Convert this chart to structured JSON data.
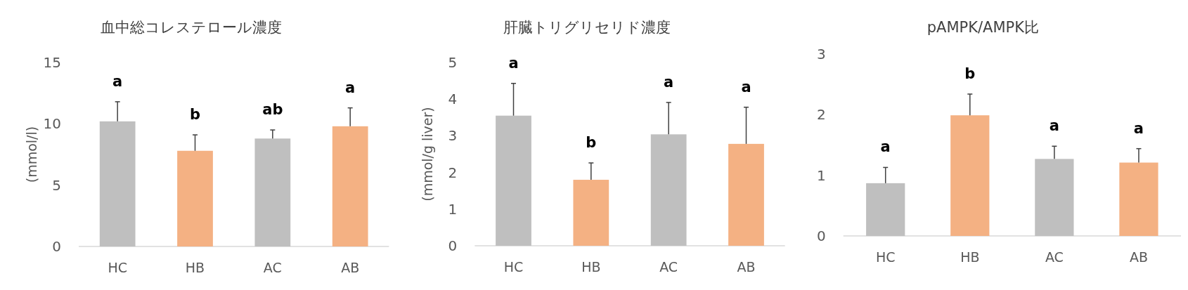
{
  "chart_data": [
    {
      "type": "bar",
      "title": "血中総コレステロール濃度",
      "ylabel": "(mmol/l)",
      "categories": [
        "HC",
        "HB",
        "AC",
        "AB"
      ],
      "series": [
        {
          "colors": [
            "#bfbfbf",
            "#f4b183",
            "#bfbfbf",
            "#f4b183"
          ],
          "values": [
            10.2,
            7.8,
            8.8,
            9.8
          ],
          "errors": [
            [
              10.2,
              11.8
            ],
            [
              7.8,
              9.1
            ],
            [
              8.8,
              9.5
            ],
            [
              9.8,
              11.3
            ]
          ]
        }
      ],
      "ylim": [
        0,
        15
      ],
      "yticks": [
        0,
        5,
        10,
        15
      ],
      "annotations": [
        "a",
        "b",
        "ab",
        "a"
      ]
    },
    {
      "type": "bar",
      "title": "肝臓トリグリセリド濃度",
      "ylabel": "(mmol/g liver)",
      "categories": [
        "HC",
        "HB",
        "AC",
        "AB"
      ],
      "series": [
        {
          "colors": [
            "#bfbfbf",
            "#f4b183",
            "#bfbfbf",
            "#f4b183"
          ],
          "values": [
            3.55,
            1.8,
            3.04,
            2.78
          ],
          "errors": [
            [
              3.55,
              4.43
            ],
            [
              1.8,
              2.26
            ],
            [
              3.04,
              3.91
            ],
            [
              2.78,
              3.78
            ]
          ]
        }
      ],
      "ylim": [
        0,
        5
      ],
      "yticks": [
        0,
        1,
        2,
        3,
        4,
        5
      ],
      "annotations": [
        "a",
        "b",
        "a",
        "a"
      ]
    },
    {
      "type": "bar",
      "title": "pAMPK/AMPK比",
      "categories": [
        "HC",
        "HB",
        "AC",
        "AB"
      ],
      "series": [
        {
          "colors": [
            "#bfbfbf",
            "#f4b183",
            "#bfbfbf",
            "#f4b183"
          ],
          "values": [
            0.87,
            1.99,
            1.27,
            1.21
          ],
          "errors": [
            [
              0.87,
              1.13
            ],
            [
              1.99,
              2.34
            ],
            [
              1.27,
              1.48
            ],
            [
              1.21,
              1.44
            ]
          ]
        }
      ],
      "ylim": [
        0,
        3
      ],
      "yticks": [
        0,
        1,
        2,
        3
      ],
      "annotations": [
        "a",
        "b",
        "a",
        "a"
      ]
    }
  ]
}
